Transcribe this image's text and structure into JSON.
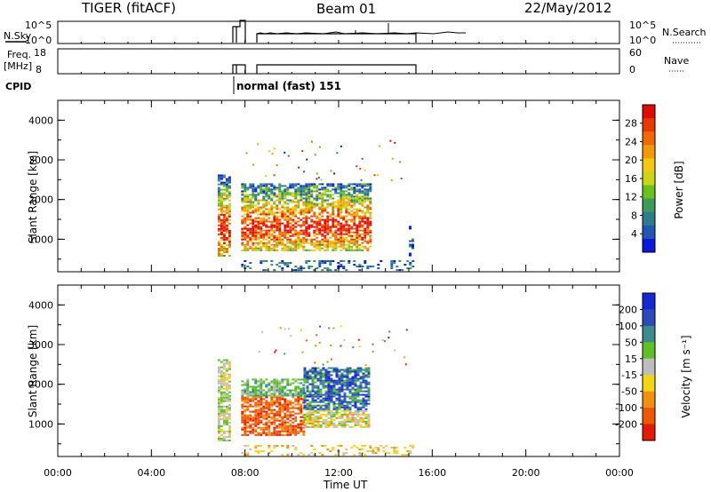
{
  "header": {
    "radar": "TIGER (fitACF)",
    "beam": "Beam 01",
    "date": "22/May/2012"
  },
  "strips": {
    "nsky_label": "N.Sky",
    "nsky_ticks": [
      "10^5",
      "10^0"
    ],
    "nsearch_label": "N.Search",
    "nsearch_ticks": [
      "10^5",
      "10^0"
    ],
    "freq_label_1": "Freq.",
    "freq_label_2": "[MHz]",
    "freq_ticks": [
      "18",
      "8"
    ],
    "nave_label": "Nave",
    "nave_ticks": [
      "60",
      "0"
    ],
    "cpid_label": "CPID",
    "cpid_text": "normal (fast) 151"
  },
  "chart_data": [
    {
      "type": "heatmap",
      "title": "",
      "parameter": "Power",
      "ylabel": "Slant Range [km]",
      "xlabel": "Time UT",
      "x_tick_labels": [
        "00:00",
        "04:00",
        "08:00",
        "12:00",
        "16:00",
        "20:00",
        "00:00"
      ],
      "y_tick_labels": [
        "1000",
        "2000",
        "3000",
        "4000"
      ],
      "yrange_km": [
        180,
        4500
      ],
      "colorbar": {
        "label": "Power [dB]",
        "tick_labels": [
          "4",
          "8",
          "12",
          "16",
          "20",
          "24",
          "28"
        ],
        "colors": [
          "#0a1ad8",
          "#2157b3",
          "#2e7c8a",
          "#3f9a5a",
          "#6bbf1e",
          "#c8d51a",
          "#f5c715",
          "#f39a0c",
          "#ee6a07",
          "#e63a05",
          "#df0b06"
        ]
      },
      "data_regions": [
        {
          "t_start": "06:50",
          "t_end": "07:20",
          "range_km": [
            560,
            2600
          ],
          "dominant": "strong"
        },
        {
          "t_start": "07:50",
          "t_end": "13:20",
          "range_km": [
            700,
            2400
          ],
          "dominant": "strong"
        },
        {
          "t_start": "07:50",
          "t_end": "15:10",
          "range_km": [
            200,
            450
          ],
          "dominant": "weak"
        },
        {
          "t_start": "15:00",
          "t_end": "15:10",
          "range_km": [
            300,
            1300
          ],
          "dominant": "weak"
        }
      ]
    },
    {
      "type": "heatmap",
      "title": "",
      "parameter": "Velocity",
      "ylabel": "Slant Range [km]",
      "xlabel": "Time UT",
      "x_tick_labels": [
        "00:00",
        "04:00",
        "08:00",
        "12:00",
        "16:00",
        "20:00",
        "00:00"
      ],
      "y_tick_labels": [
        "1000",
        "2000",
        "3000",
        "4000"
      ],
      "yrange_km": [
        180,
        4500
      ],
      "colorbar": {
        "label": "Velocity [m s⁻¹]",
        "tick_labels": [
          "200",
          "100",
          "50",
          "15",
          "-15",
          "-50",
          "-100",
          "-200"
        ],
        "colors": [
          "#1628d4",
          "#2d4bb8",
          "#3c8c8c",
          "#5fbf2a",
          "#bdbdbd",
          "#f5d315",
          "#f09010",
          "#ea5808",
          "#e11b06"
        ]
      },
      "data_regions": [
        {
          "t_start": "06:50",
          "t_end": "07:20",
          "range_km": [
            560,
            2600
          ],
          "dominant": "grey"
        },
        {
          "t_start": "07:50",
          "t_end": "10:30",
          "range_km": [
            700,
            2100
          ],
          "dominant": "red-orange"
        },
        {
          "t_start": "10:30",
          "t_end": "13:20",
          "range_km": [
            900,
            2400
          ],
          "dominant": "blue"
        },
        {
          "t_start": "07:50",
          "t_end": "15:10",
          "range_km": [
            200,
            450
          ],
          "dominant": "yellow-grey"
        }
      ]
    }
  ]
}
